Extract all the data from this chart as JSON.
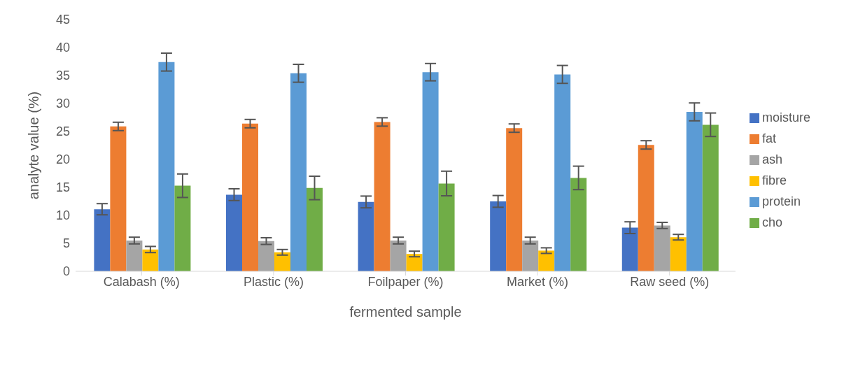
{
  "chart_data": {
    "type": "bar",
    "xlabel": "fermented sample",
    "ylabel": "analyte value (%)",
    "categories": [
      "Calabash (%)",
      "Plastic (%)",
      "Foilpaper (%)",
      "Market (%)",
      "Raw seed (%)"
    ],
    "series": [
      {
        "name": "moisture",
        "color": "#4472c4",
        "values": [
          11.1,
          13.7,
          12.4,
          12.5,
          7.8
        ],
        "errors": [
          1.0,
          1.05,
          1.05,
          1.05,
          1.05
        ]
      },
      {
        "name": "fat",
        "color": "#ed7d31",
        "values": [
          25.9,
          26.4,
          26.7,
          25.6,
          22.6
        ],
        "errors": [
          0.75,
          0.75,
          0.75,
          0.75,
          0.75
        ]
      },
      {
        "name": "ash",
        "color": "#a5a5a5",
        "values": [
          5.5,
          5.4,
          5.5,
          5.5,
          8.2
        ],
        "errors": [
          0.6,
          0.6,
          0.6,
          0.6,
          0.55
        ]
      },
      {
        "name": "fibre",
        "color": "#ffc000",
        "values": [
          3.9,
          3.4,
          3.1,
          3.7,
          6.1
        ],
        "errors": [
          0.55,
          0.5,
          0.5,
          0.5,
          0.5
        ]
      },
      {
        "name": "protein",
        "color": "#5b9bd5",
        "values": [
          37.4,
          35.4,
          35.6,
          35.2,
          28.5
        ],
        "errors": [
          1.6,
          1.6,
          1.55,
          1.6,
          1.6
        ]
      },
      {
        "name": "cho",
        "color": "#70ad47",
        "values": [
          15.3,
          14.9,
          15.7,
          16.7,
          26.2
        ],
        "errors": [
          2.1,
          2.1,
          2.2,
          2.1,
          2.1
        ]
      }
    ],
    "ylim": [
      0,
      45
    ],
    "yticks": [
      0,
      5,
      10,
      15,
      20,
      25,
      30,
      35,
      40,
      45
    ],
    "grid": false,
    "legend": "right"
  }
}
